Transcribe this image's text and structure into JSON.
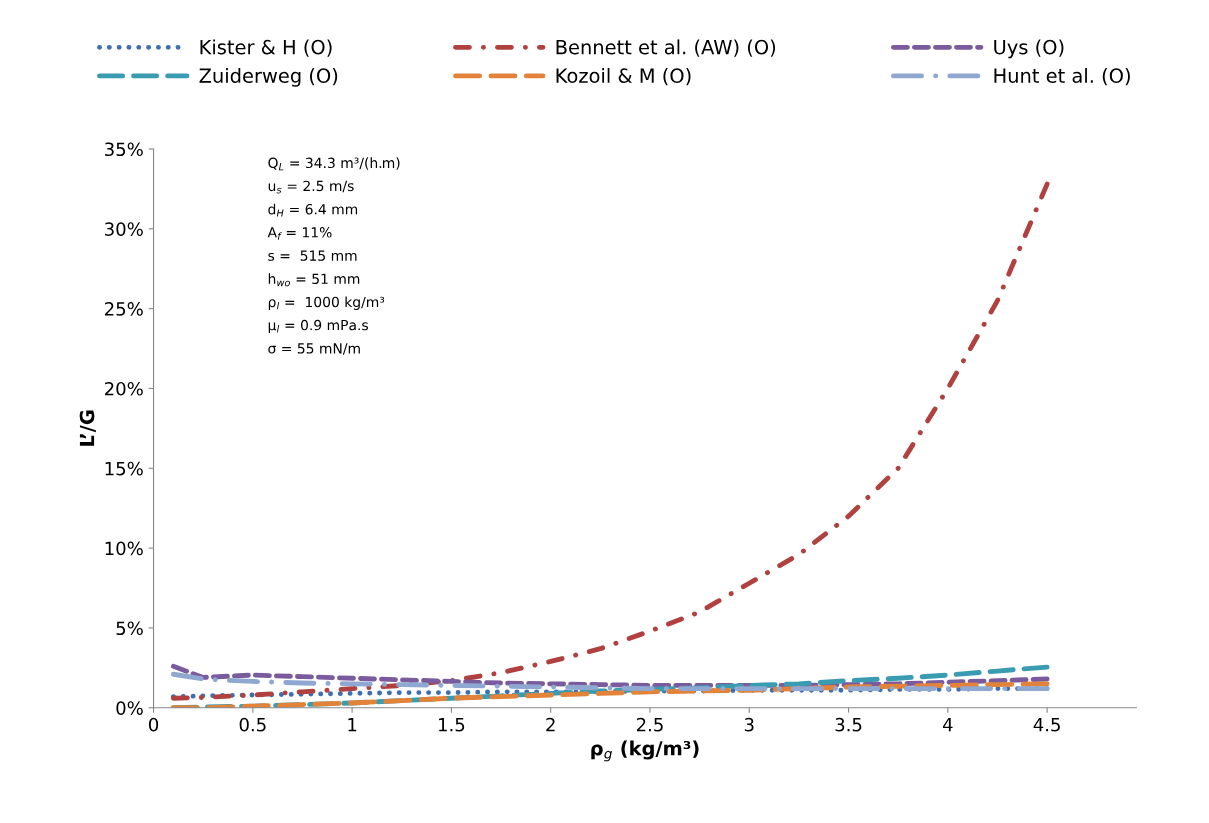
{
  "chart_data": {
    "type": "line",
    "xlabel": "ρ$_{g}$ (kg/m³)",
    "ylabel": "L’/G",
    "x": [
      0.1,
      0.25,
      0.5,
      0.75,
      1,
      1.25,
      1.5,
      1.75,
      2,
      2.25,
      2.5,
      2.75,
      3,
      3.25,
      3.5,
      3.75,
      4,
      4.25,
      4.5
    ],
    "series": [
      {
        "name": "Kister & H (O)",
        "color": "#3f6fb0",
        "line_style": "dotted",
        "values": [
          0.7,
          0.75,
          0.8,
          0.85,
          0.9,
          0.95,
          0.95,
          1.0,
          1.0,
          1.0,
          1.05,
          1.05,
          1.1,
          1.1,
          1.1,
          1.15,
          1.15,
          1.2,
          1.2
        ]
      },
      {
        "name": "Bennett et al. (AW) (O)",
        "color": "#b0413e",
        "line_style": "dashdot",
        "values": [
          0.6,
          0.65,
          0.8,
          1.0,
          1.2,
          1.4,
          1.7,
          2.2,
          2.9,
          3.7,
          4.8,
          6.0,
          7.8,
          9.6,
          12.0,
          15.0,
          20.0,
          25.5,
          32.8
        ]
      },
      {
        "name": "Uys (O)",
        "color": "#7a5c9e",
        "line_style": "dashed",
        "values": [
          2.6,
          1.9,
          2.05,
          1.95,
          1.85,
          1.75,
          1.65,
          1.55,
          1.5,
          1.45,
          1.4,
          1.4,
          1.4,
          1.4,
          1.45,
          1.5,
          1.6,
          1.7,
          1.8
        ]
      },
      {
        "name": "Zuiderweg (O)",
        "color": "#3a9cb0",
        "line_style": "longdash",
        "values": [
          0.0,
          0.05,
          0.1,
          0.2,
          0.3,
          0.45,
          0.6,
          0.75,
          0.9,
          1.05,
          1.15,
          1.25,
          1.4,
          1.5,
          1.7,
          1.85,
          2.05,
          2.3,
          2.55
        ]
      },
      {
        "name": "Kozoil & M (O)",
        "color": "#e3833a",
        "line_style": "longdash",
        "values": [
          0.0,
          0.0,
          0.1,
          0.2,
          0.3,
          0.45,
          0.6,
          0.7,
          0.8,
          0.9,
          1.0,
          1.05,
          1.1,
          1.2,
          1.3,
          1.35,
          1.4,
          1.45,
          1.5
        ]
      },
      {
        "name": "Hunt et al. (O)",
        "color": "#8fa8d2",
        "line_style": "longdashdot",
        "values": [
          2.1,
          1.8,
          1.65,
          1.55,
          1.5,
          1.45,
          1.4,
          1.35,
          1.3,
          1.25,
          1.2,
          1.2,
          1.2,
          1.2,
          1.2,
          1.2,
          1.2,
          1.2,
          1.2
        ]
      }
    ],
    "xlim": [
      0,
      4.95
    ],
    "xticks": [
      0,
      0.5,
      1,
      1.5,
      2,
      2.5,
      3,
      3.5,
      4,
      4.5
    ],
    "ylim": [
      0,
      35
    ],
    "yticks": [
      {
        "value": 0,
        "label": "0%"
      },
      {
        "value": 5,
        "label": "5%"
      },
      {
        "value": 10,
        "label": "10%"
      },
      {
        "value": 15,
        "label": "15%"
      },
      {
        "value": 20,
        "label": "20%"
      },
      {
        "value": 25,
        "label": "25%"
      },
      {
        "value": 30,
        "label": "30%"
      },
      {
        "value": 35,
        "label": "35%"
      }
    ],
    "annotations": [
      "Q$_{L}$ = 34.3 m³/(h.m)",
      "u$_{s}$ = 2.5 m/s",
      "d$_{H}$ = 6.4 mm",
      "A$_{f}$ = 11%",
      "s =  515 mm",
      "h$_{wo}$ = 51 mm",
      "ρ$_{l}$ =  1000 kg/m³",
      "μ$_{l}$ = 0.9 mPa.s",
      "σ = 55 mN/m"
    ],
    "legend": "top",
    "grid": false,
    "marker": "none"
  }
}
